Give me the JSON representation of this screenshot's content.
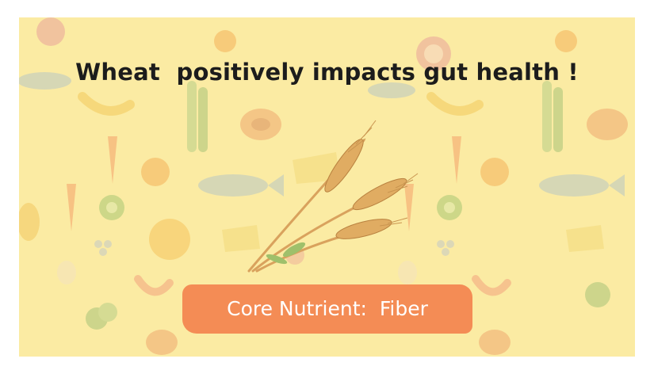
{
  "headline": "Wheat  positively impacts gut health !",
  "nutrient_badge": {
    "text": "Core Nutrient:  Fiber"
  },
  "icons": {
    "main": "wheat-icon",
    "background": [
      "pomegranate-icon",
      "fish-icon",
      "banana-icon",
      "celery-icon",
      "papaya-icon",
      "cheese-icon",
      "carrot-icon",
      "pineapple-icon",
      "kiwi-icon",
      "broccoli-icon",
      "shrimp-icon",
      "egg-icon",
      "radish-icon",
      "orange-icon"
    ]
  },
  "colors": {
    "background": "#fbeba3",
    "pill": "#f48c55",
    "headline": "#1c1c1c",
    "pill_text": "#ffffff"
  }
}
